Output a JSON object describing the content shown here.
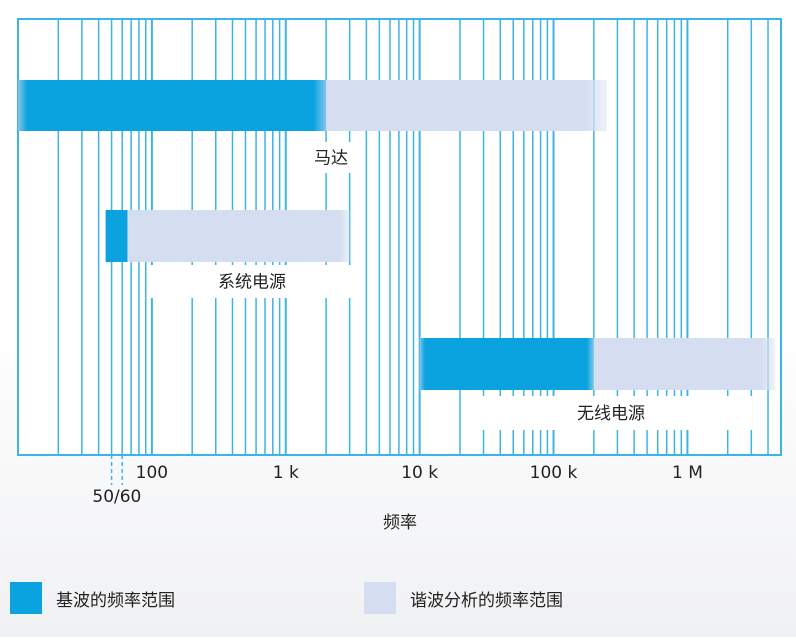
{
  "chart_data": {
    "type": "bar",
    "orientation": "horizontal-range",
    "xscale": "log",
    "xlim": [
      10,
      5000000
    ],
    "xlabel": "频率",
    "ticks": [
      {
        "value": 100,
        "label": "100"
      },
      {
        "value": 1000,
        "label": "1 k"
      },
      {
        "value": 10000,
        "label": "10 k"
      },
      {
        "value": 100000,
        "label": "100 k"
      },
      {
        "value": 1000000,
        "label": "1 M"
      }
    ],
    "marker_label": "50/60",
    "marker_values": [
      50,
      60
    ],
    "colors": {
      "fundamental": "#0aa3e0",
      "harmonic": "#d4def0",
      "grid": "#3cb4e6",
      "text": "#222222"
    },
    "series": [
      {
        "name": "基波的频率范围",
        "key": "fundamental"
      },
      {
        "name": "谐波分析的频率范围",
        "key": "harmonic"
      }
    ],
    "bars": [
      {
        "label": "马达",
        "start": 10,
        "fundamental_end": 2000,
        "harmonic_end": 250000
      },
      {
        "label": "系统电源",
        "start": 45,
        "fundamental_end": 66,
        "harmonic_end": 3000
      },
      {
        "label": "无线电源",
        "start": 10000,
        "fundamental_end": 200000,
        "harmonic_end": 4500000
      }
    ]
  }
}
